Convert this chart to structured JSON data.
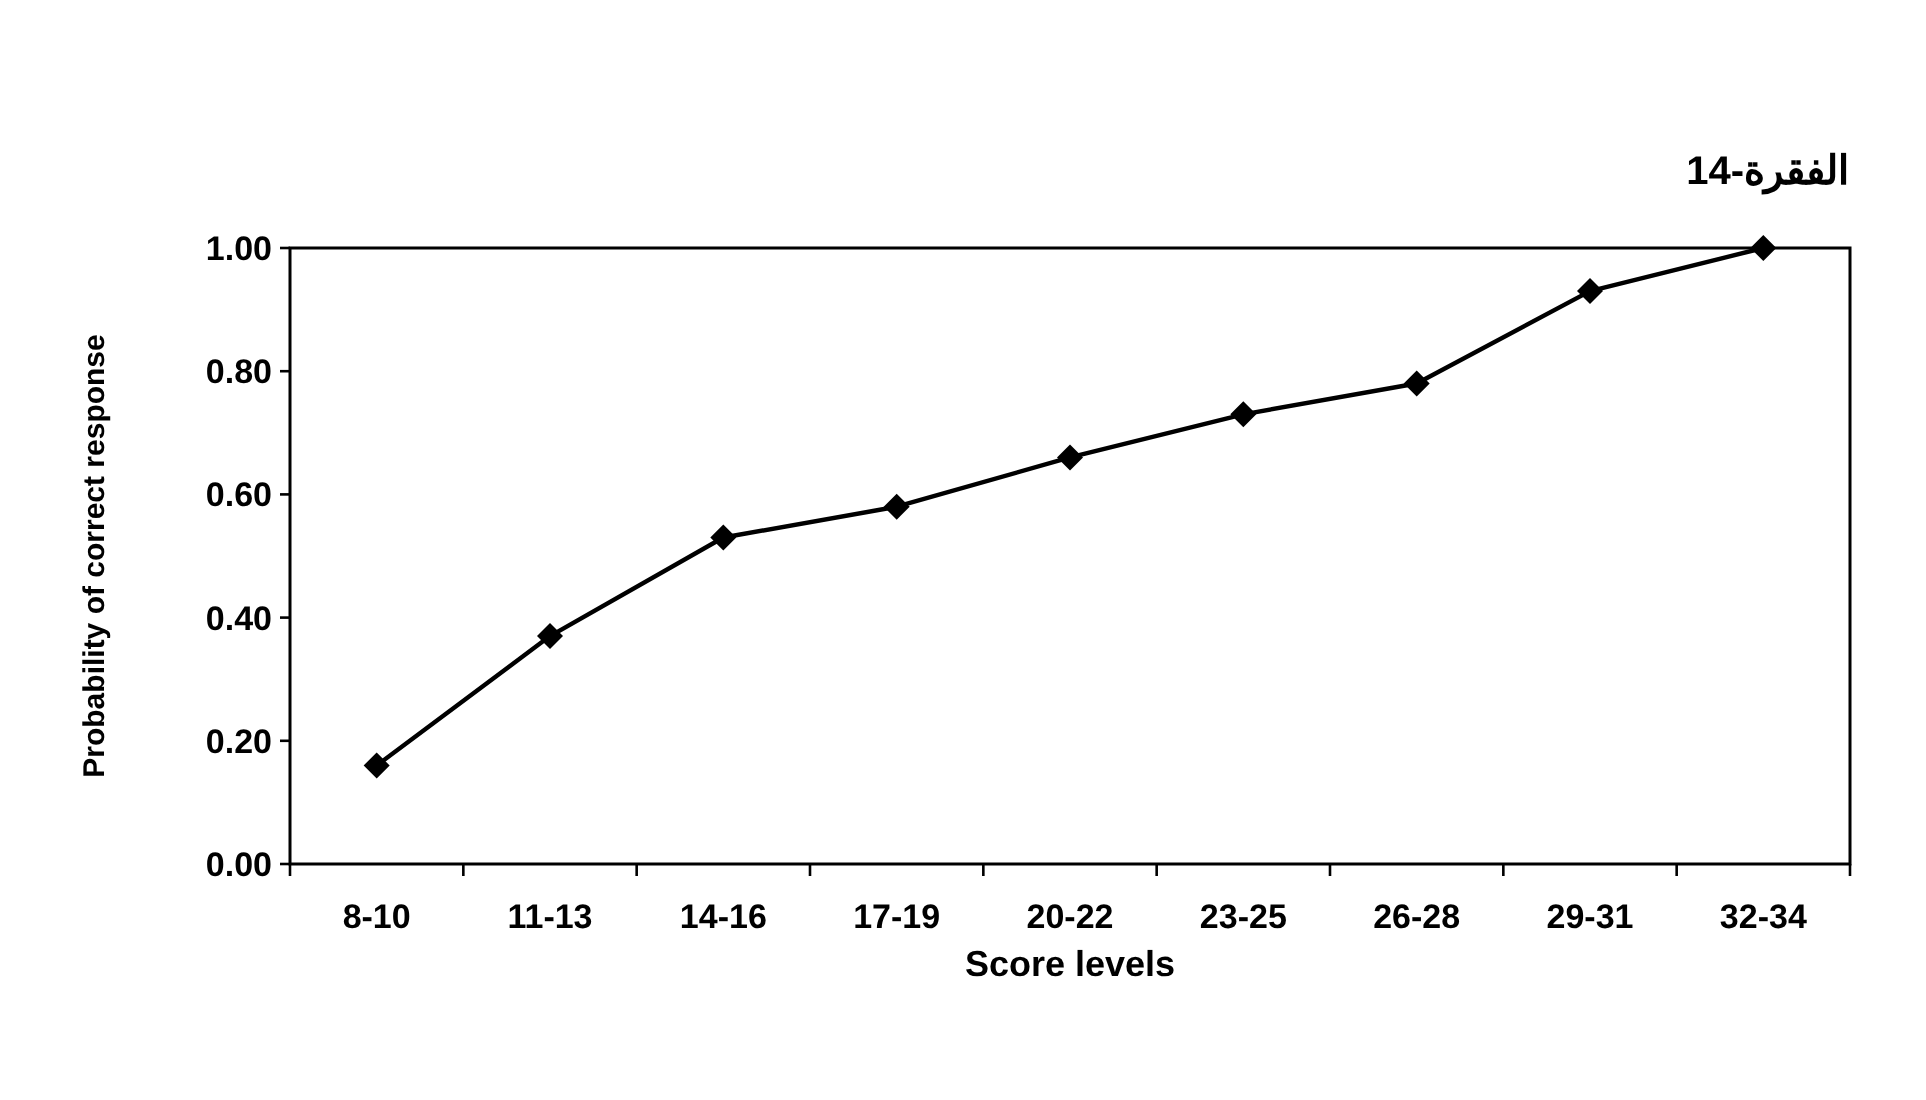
{
  "chart_data": {
    "type": "line",
    "title": "الفقرة-14",
    "xlabel": "Score levels",
    "ylabel": "Probability of correct response",
    "categories": [
      "8-10",
      "11-13",
      "14-16",
      "17-19",
      "20-22",
      "23-25",
      "26-28",
      "29-31",
      "32-34"
    ],
    "series": [
      {
        "color": "#000000",
        "values": [
          0.16,
          0.37,
          0.53,
          0.58,
          0.66,
          0.73,
          0.78,
          0.93,
          1.0
        ]
      }
    ],
    "ylim": [
      0,
      1
    ],
    "yticks": [
      {
        "value": 0,
        "label": "0.00"
      },
      {
        "value": 0.2,
        "label": "0.20"
      },
      {
        "value": 0.4,
        "label": "0.40"
      },
      {
        "value": 0.6,
        "label": "0.60"
      },
      {
        "value": 0.8,
        "label": "0.80"
      },
      {
        "value": 1,
        "label": "1.00"
      }
    ],
    "grid": false,
    "marker": "diamond",
    "line_style": "solid"
  }
}
